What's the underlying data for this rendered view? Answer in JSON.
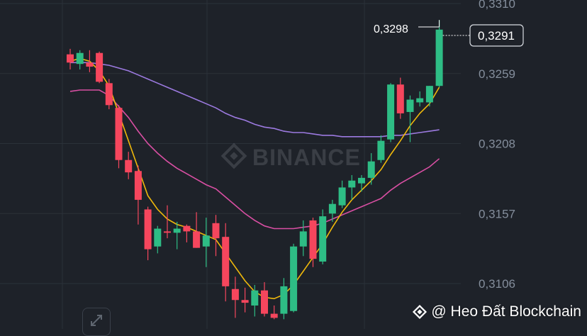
{
  "chart_data": {
    "type": "candlestick",
    "title": "",
    "watermark": "BINANCE",
    "ylim": [
      0.308,
      0.3312
    ],
    "y_ticks": [
      "0,3310",
      "0,3259",
      "0,3208",
      "0,3157",
      "0,3106"
    ],
    "y_tick_values": [
      0.331,
      0.3259,
      0.3208,
      0.3157,
      0.3106
    ],
    "high_label": "0,3298",
    "high_value": 0.3298,
    "last_price_label": "0,3291",
    "last_price": 0.3291,
    "colors": {
      "up": "#2ebd85",
      "down": "#f6465d",
      "ma_fast": "#f0b90b",
      "ma_mid": "#d94fa3",
      "ma_slow": "#9c7ae0",
      "grid": "#2b3139",
      "axis_text": "#848e9c"
    },
    "candles": [
      {
        "o": 0.3273,
        "h": 0.3277,
        "l": 0.3262,
        "c": 0.3267
      },
      {
        "o": 0.3266,
        "h": 0.3276,
        "l": 0.3262,
        "c": 0.3274
      },
      {
        "o": 0.3267,
        "h": 0.3276,
        "l": 0.326,
        "c": 0.3264
      },
      {
        "o": 0.3274,
        "h": 0.3275,
        "l": 0.3252,
        "c": 0.3253
      },
      {
        "o": 0.3252,
        "h": 0.3255,
        "l": 0.3233,
        "c": 0.3236
      },
      {
        "o": 0.3234,
        "h": 0.3236,
        "l": 0.319,
        "c": 0.3196
      },
      {
        "o": 0.3196,
        "h": 0.3202,
        "l": 0.3182,
        "c": 0.3187
      },
      {
        "o": 0.3188,
        "h": 0.3192,
        "l": 0.3149,
        "c": 0.3167
      },
      {
        "o": 0.316,
        "h": 0.3162,
        "l": 0.3123,
        "c": 0.3131
      },
      {
        "o": 0.3133,
        "h": 0.3148,
        "l": 0.3128,
        "c": 0.3146
      },
      {
        "o": 0.3144,
        "h": 0.3163,
        "l": 0.3139,
        "c": 0.3143
      },
      {
        "o": 0.3143,
        "h": 0.3151,
        "l": 0.3131,
        "c": 0.3146
      },
      {
        "o": 0.3148,
        "h": 0.3149,
        "l": 0.3136,
        "c": 0.3144
      },
      {
        "o": 0.3144,
        "h": 0.3158,
        "l": 0.3132,
        "c": 0.3132
      },
      {
        "o": 0.3133,
        "h": 0.3154,
        "l": 0.3118,
        "c": 0.3141
      },
      {
        "o": 0.315,
        "h": 0.3156,
        "l": 0.3126,
        "c": 0.3139
      },
      {
        "o": 0.314,
        "h": 0.315,
        "l": 0.3093,
        "c": 0.3104
      },
      {
        "o": 0.3102,
        "h": 0.3111,
        "l": 0.3081,
        "c": 0.3094
      },
      {
        "o": 0.3094,
        "h": 0.3103,
        "l": 0.3085,
        "c": 0.3092
      },
      {
        "o": 0.309,
        "h": 0.3105,
        "l": 0.3082,
        "c": 0.3101
      },
      {
        "o": 0.3101,
        "h": 0.3107,
        "l": 0.3082,
        "c": 0.3084
      },
      {
        "o": 0.3084,
        "h": 0.309,
        "l": 0.308,
        "c": 0.3081
      },
      {
        "o": 0.3084,
        "h": 0.311,
        "l": 0.308,
        "c": 0.3104
      },
      {
        "o": 0.3086,
        "h": 0.3135,
        "l": 0.3085,
        "c": 0.3133
      },
      {
        "o": 0.3133,
        "h": 0.3152,
        "l": 0.3126,
        "c": 0.3144
      },
      {
        "o": 0.3152,
        "h": 0.3154,
        "l": 0.3118,
        "c": 0.3124
      },
      {
        "o": 0.3122,
        "h": 0.316,
        "l": 0.312,
        "c": 0.3155
      },
      {
        "o": 0.3157,
        "h": 0.3167,
        "l": 0.3151,
        "c": 0.3164
      },
      {
        "o": 0.3163,
        "h": 0.3181,
        "l": 0.3161,
        "c": 0.3176
      },
      {
        "o": 0.3176,
        "h": 0.3185,
        "l": 0.3167,
        "c": 0.3181
      },
      {
        "o": 0.3179,
        "h": 0.3185,
        "l": 0.3173,
        "c": 0.3183
      },
      {
        "o": 0.3183,
        "h": 0.3201,
        "l": 0.3178,
        "c": 0.3195
      },
      {
        "o": 0.3196,
        "h": 0.3214,
        "l": 0.3194,
        "c": 0.321
      },
      {
        "o": 0.3211,
        "h": 0.3252,
        "l": 0.3209,
        "c": 0.3251
      },
      {
        "o": 0.3251,
        "h": 0.3256,
        "l": 0.3226,
        "c": 0.323
      },
      {
        "o": 0.3231,
        "h": 0.3243,
        "l": 0.3209,
        "c": 0.324
      },
      {
        "o": 0.3238,
        "h": 0.3246,
        "l": 0.3235,
        "c": 0.3241
      },
      {
        "o": 0.3238,
        "h": 0.325,
        "l": 0.3235,
        "c": 0.325
      },
      {
        "o": 0.325,
        "h": 0.3298,
        "l": 0.3249,
        "c": 0.3291
      }
    ],
    "ma_fast": [
      0.3268,
      0.327,
      0.3268,
      0.3261,
      0.325,
      0.323,
      0.321,
      0.319,
      0.317,
      0.316,
      0.3153,
      0.3149,
      0.3147,
      0.3144,
      0.3141,
      0.3138,
      0.3128,
      0.3118,
      0.3108,
      0.31,
      0.3096,
      0.3095,
      0.3098,
      0.3105,
      0.3115,
      0.3125,
      0.3135,
      0.3147,
      0.3158,
      0.3167,
      0.3174,
      0.3181,
      0.3189,
      0.32,
      0.321,
      0.3221,
      0.323,
      0.3237,
      0.3249
    ],
    "ma_mid": [
      0.3246,
      0.3247,
      0.3247,
      0.3247,
      0.3243,
      0.3235,
      0.3227,
      0.3217,
      0.3208,
      0.3201,
      0.3195,
      0.319,
      0.3186,
      0.3182,
      0.3178,
      0.3175,
      0.3169,
      0.3163,
      0.3157,
      0.3152,
      0.3148,
      0.3146,
      0.3146,
      0.3146,
      0.3147,
      0.3148,
      0.315,
      0.3153,
      0.3156,
      0.3159,
      0.3162,
      0.3165,
      0.3168,
      0.3174,
      0.3179,
      0.3183,
      0.3187,
      0.3191,
      0.3197
    ],
    "ma_slow": [
      0.3267,
      0.3267,
      0.3267,
      0.3266,
      0.3265,
      0.3263,
      0.3261,
      0.3258,
      0.3255,
      0.3252,
      0.3249,
      0.3246,
      0.3243,
      0.324,
      0.3237,
      0.3234,
      0.323,
      0.3227,
      0.3225,
      0.3222,
      0.322,
      0.3219,
      0.3217,
      0.3216,
      0.3216,
      0.3215,
      0.3214,
      0.3214,
      0.3213,
      0.3213,
      0.3213,
      0.3213,
      0.3213,
      0.3214,
      0.3214,
      0.3215,
      0.3216,
      0.3217,
      0.3218
    ]
  },
  "footer": {
    "credit_text": "@ Heo Đất Blockchain"
  },
  "icons": {
    "credit": "binance-diamond-icon",
    "expand": "expand-arrows-icon"
  }
}
